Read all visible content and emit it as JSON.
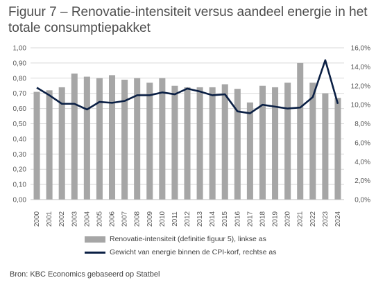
{
  "title": "Figuur 7 – Renovatie-intensiteit versus aandeel energie in het totale consumptiepakket",
  "source": "Bron: KBC Economics gebaseerd op Statbel",
  "colors": {
    "bars": "#a6a6a6",
    "line": "#0a1f44",
    "grid": "#d9d9d9"
  },
  "chart_data": {
    "type": "bar",
    "categories": [
      "2000",
      "2001",
      "2002",
      "2003",
      "2004",
      "2005",
      "2006",
      "2007",
      "2008",
      "2009",
      "2010",
      "2011",
      "2012",
      "2013",
      "2014",
      "2015",
      "2016",
      "2017",
      "2018",
      "2019",
      "2020",
      "2021",
      "2022",
      "2023",
      "2024"
    ],
    "series": [
      {
        "name": "Renovatie-intensiteit (definitie figuur 5), linkse as",
        "type": "bar",
        "axis": "left",
        "values": [
          0.71,
          0.72,
          0.74,
          0.83,
          0.81,
          0.8,
          0.82,
          0.79,
          0.8,
          0.77,
          0.8,
          0.75,
          0.74,
          0.74,
          0.74,
          0.76,
          0.73,
          0.64,
          0.75,
          0.74,
          0.77,
          0.9,
          0.77,
          0.7,
          0.67
        ]
      },
      {
        "name": "Gewicht van energie binnen de CPI-korf, rechtse as",
        "type": "line",
        "axis": "right",
        "values": [
          11.8,
          11.0,
          10.1,
          10.1,
          9.5,
          10.3,
          10.2,
          10.4,
          11.0,
          11.0,
          11.3,
          11.1,
          11.7,
          11.4,
          11.0,
          11.1,
          9.3,
          9.1,
          10.0,
          9.8,
          9.6,
          9.7,
          10.8,
          14.7,
          10.1
        ]
      }
    ],
    "y_left": {
      "min": 0,
      "max": 1.0,
      "ticks": [
        "0,00",
        "0,10",
        "0,20",
        "0,30",
        "0,40",
        "0,50",
        "0,60",
        "0,70",
        "0,80",
        "0,90",
        "1,00"
      ]
    },
    "y_right": {
      "min": 0,
      "max": 16,
      "ticks": [
        "0,0%",
        "2,0%",
        "4,0%",
        "6,0%",
        "8,0%",
        "10,0%",
        "12,0%",
        "14,0%",
        "16,0%"
      ]
    },
    "grid": true,
    "legend_position": "bottom"
  }
}
